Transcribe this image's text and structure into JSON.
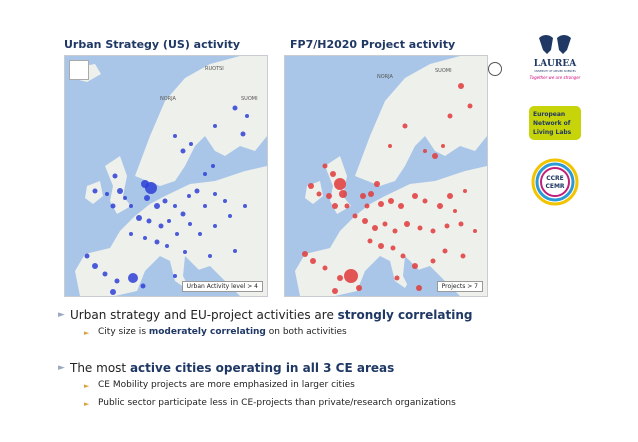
{
  "maps": {
    "left": {
      "title": "Urban Strategy (US) activity",
      "badge": "Urban Activity level > 4",
      "labels": [
        "SUOMI",
        "NORJA",
        "RUOTSI"
      ],
      "marker_color": "#2e3fd6"
    },
    "right": {
      "title": "FP7/H2020 Project activity",
      "badge": "Projects > 7",
      "labels": [
        "NORJA",
        "SUOMI"
      ],
      "marker_color": "#e0393a"
    }
  },
  "logos": {
    "laurea": {
      "name": "LAUREA",
      "tagline": "Together we are stronger",
      "small": "UNIVERSITY OF APPLIED SCIENCES"
    },
    "enoll": {
      "line1": "European",
      "line2": "Network of",
      "line3": "Living Labs"
    },
    "ccre": {
      "line1": "CCRE",
      "line2": "CEMR"
    }
  },
  "bullets": [
    {
      "level": 1,
      "parts": [
        {
          "text": "Urban strategy and EU-project activities are ",
          "bold": false
        },
        {
          "text": "strongly correlating",
          "bold": true
        }
      ]
    },
    {
      "level": 2,
      "parts": [
        {
          "text": "City size is ",
          "bold": false
        },
        {
          "text": "moderately correlating",
          "bold": true
        },
        {
          "text": " on both activities",
          "bold": false
        }
      ]
    },
    {
      "level": 1,
      "parts": [
        {
          "text": "The most ",
          "bold": false
        },
        {
          "text": "active cities operating in all 3 CE areas",
          "bold": true
        }
      ]
    },
    {
      "level": 2,
      "parts": [
        {
          "text": "CE Mobility projects are more emphasized in larger cities",
          "bold": false
        }
      ]
    },
    {
      "level": 2,
      "parts": [
        {
          "text": "Public sector participate less in CE-projects than private/research organizations",
          "bold": false
        }
      ]
    }
  ]
}
